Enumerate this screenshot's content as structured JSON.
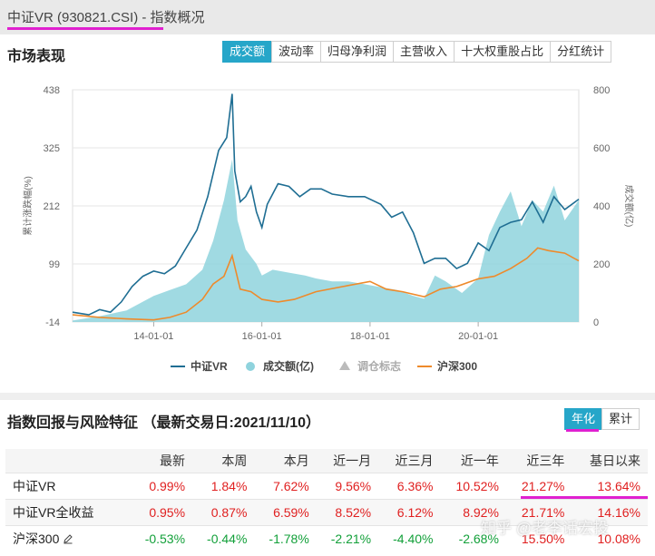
{
  "page": {
    "title": "中证VR (930821.CSI) - 指数概况"
  },
  "market": {
    "section_title": "市场表现",
    "tabs": [
      "成交额",
      "波动率",
      "归母净利润",
      "主营收入",
      "十大权重股占比",
      "分红统计"
    ],
    "active_tab": "成交额"
  },
  "chart_data": {
    "type": "line",
    "x_ticks": [
      "14-01-01",
      "16-01-01",
      "18-01-01",
      "20-01-01"
    ],
    "left_axis": {
      "label": "累计涨跌幅(%)",
      "ticks": [
        438,
        325,
        212,
        99,
        -14
      ],
      "range": [
        -14,
        438
      ]
    },
    "right_axis": {
      "label": "成交额(亿)",
      "ticks": [
        800,
        600,
        400,
        200,
        0
      ],
      "range": [
        0,
        800
      ]
    },
    "legend": [
      "中证VR",
      "成交额(亿)",
      "调仓标志",
      "沪深300"
    ],
    "series": [
      {
        "name": "中证VR",
        "axis": "left",
        "color": "#1f6e93",
        "x": [
          2012.5,
          2012.8,
          2013.0,
          2013.2,
          2013.4,
          2013.6,
          2013.8,
          2014.0,
          2014.2,
          2014.4,
          2014.6,
          2014.8,
          2015.0,
          2015.2,
          2015.35,
          2015.45,
          2015.5,
          2015.6,
          2015.7,
          2015.8,
          2015.9,
          2016.0,
          2016.1,
          2016.3,
          2016.5,
          2016.7,
          2016.9,
          2017.1,
          2017.3,
          2017.6,
          2017.9,
          2018.2,
          2018.4,
          2018.6,
          2018.8,
          2019.0,
          2019.2,
          2019.4,
          2019.6,
          2019.8,
          2020.0,
          2020.2,
          2020.4,
          2020.6,
          2020.8,
          2021.0,
          2021.2,
          2021.4,
          2021.6,
          2021.86
        ],
        "values": [
          5,
          0,
          10,
          5,
          25,
          55,
          75,
          85,
          80,
          95,
          130,
          165,
          230,
          320,
          345,
          430,
          280,
          220,
          230,
          250,
          200,
          170,
          215,
          255,
          250,
          230,
          245,
          245,
          235,
          230,
          230,
          215,
          190,
          200,
          160,
          100,
          110,
          110,
          90,
          100,
          140,
          125,
          170,
          180,
          185,
          220,
          180,
          230,
          205,
          225
        ]
      },
      {
        "name": "沪深300",
        "axis": "left",
        "color": "#ee8a2b",
        "x": [
          2012.5,
          2013.0,
          2013.5,
          2014.0,
          2014.3,
          2014.6,
          2014.9,
          2015.1,
          2015.3,
          2015.45,
          2015.6,
          2015.8,
          2016.0,
          2016.3,
          2016.6,
          2017.0,
          2017.5,
          2018.0,
          2018.3,
          2018.6,
          2019.0,
          2019.3,
          2019.6,
          2020.0,
          2020.3,
          2020.6,
          2020.9,
          2021.1,
          2021.3,
          2021.6,
          2021.86
        ],
        "values": [
          0,
          -5,
          -8,
          -10,
          -5,
          5,
          30,
          60,
          75,
          115,
          50,
          45,
          30,
          25,
          30,
          45,
          55,
          65,
          50,
          45,
          35,
          50,
          55,
          70,
          75,
          90,
          110,
          130,
          125,
          120,
          105
        ]
      },
      {
        "name": "成交额(亿)",
        "axis": "right",
        "type": "area",
        "color": "#8fd3dd",
        "x": [
          2012.5,
          2013.0,
          2013.5,
          2013.8,
          2014.0,
          2014.3,
          2014.6,
          2014.9,
          2015.1,
          2015.3,
          2015.45,
          2015.55,
          2015.7,
          2015.9,
          2016.0,
          2016.2,
          2016.5,
          2016.8,
          2017.0,
          2017.3,
          2017.6,
          2017.9,
          2018.2,
          2018.5,
          2018.8,
          2019.0,
          2019.2,
          2019.4,
          2019.7,
          2020.0,
          2020.2,
          2020.4,
          2020.6,
          2020.8,
          2021.0,
          2021.2,
          2021.4,
          2021.6,
          2021.86
        ],
        "values": [
          5,
          20,
          40,
          70,
          90,
          110,
          130,
          180,
          280,
          420,
          560,
          350,
          250,
          200,
          160,
          180,
          170,
          160,
          150,
          140,
          140,
          130,
          120,
          110,
          90,
          80,
          160,
          140,
          100,
          150,
          300,
          380,
          450,
          330,
          420,
          380,
          470,
          350,
          420
        ]
      }
    ],
    "markers": "调仓标志"
  },
  "returns": {
    "title": "指数回报与风险特征",
    "trade_date": "（最新交易日:2021/11/10）",
    "toggle": [
      "年化",
      "累计"
    ],
    "active_toggle": "年化",
    "columns": [
      "",
      "最新",
      "本周",
      "本月",
      "近一月",
      "近三月",
      "近一年",
      "近三年",
      "基日以来"
    ],
    "rows": [
      {
        "name": "中证VR",
        "values": [
          "0.99%",
          "1.84%",
          "7.62%",
          "9.56%",
          "6.36%",
          "10.52%",
          "21.27%",
          "13.64%"
        ],
        "signs": [
          "up",
          "up",
          "up",
          "up",
          "up",
          "up",
          "up",
          "up"
        ]
      },
      {
        "name": "中证VR全收益",
        "values": [
          "0.95%",
          "0.87%",
          "6.59%",
          "8.52%",
          "6.12%",
          "8.92%",
          "21.71%",
          "14.16%"
        ],
        "signs": [
          "up",
          "up",
          "up",
          "up",
          "up",
          "up",
          "up",
          "up"
        ]
      },
      {
        "name": "沪深300",
        "values": [
          "-0.53%",
          "-0.44%",
          "-1.78%",
          "-2.21%",
          "-4.40%",
          "-2.68%",
          "15.50%",
          "10.08%"
        ],
        "signs": [
          "down",
          "down",
          "down",
          "down",
          "down",
          "down",
          "up",
          "up"
        ]
      }
    ]
  },
  "watermark": "知乎 @老李话宏投"
}
